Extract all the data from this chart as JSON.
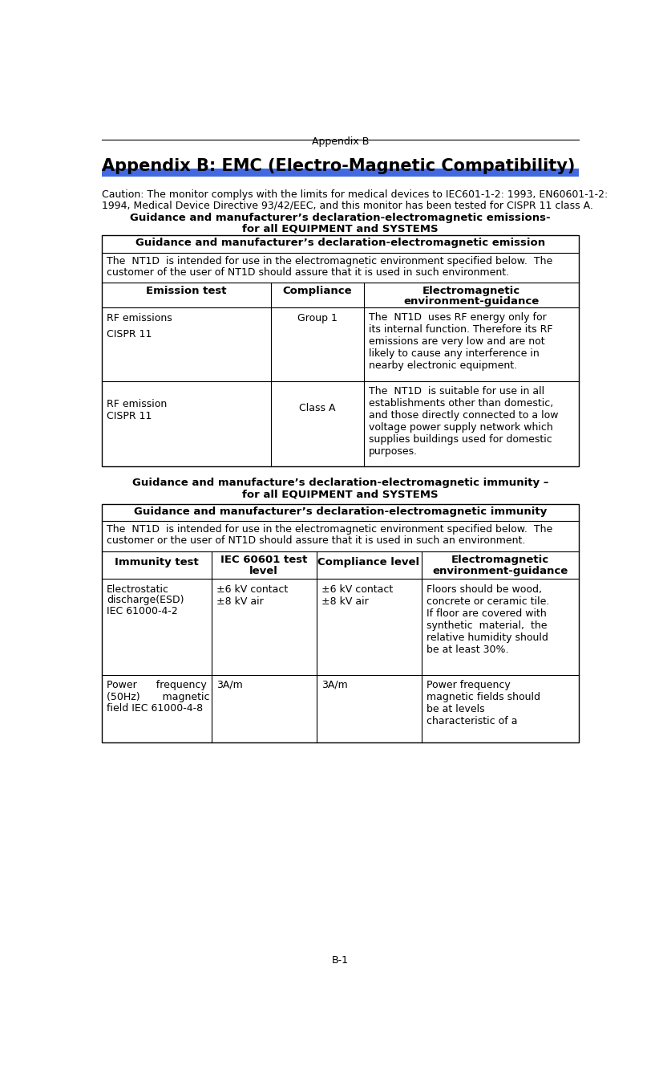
{
  "page_title": "Appendix B",
  "main_title": "Appendix B: EMC (Electro-Magnetic Compatibility)",
  "blue_bar_color": "#4169E1",
  "caution_line1": "Caution: The monitor complys with the limits for medical devices to IEC601-1-2: 1993, EN60601-1-2:",
  "caution_line2": "1994, Medical Device Directive 93/42/EEC, and this monitor has been tested for CISPR 11 class A.",
  "emissions_heading1": "Guidance and manufacturer’s declaration-electromagnetic emissions-",
  "emissions_heading2": "for all EQUIPMENT and SYSTEMS",
  "emission_table_title": "Guidance and manufacturer’s declaration-electromagnetic emission",
  "immunity_heading1": "Guidance and manufacture’s declaration-electromagnetic immunity –",
  "immunity_heading2": "for all EQUIPMENT and SYSTEMS",
  "immunity_table_title": "Guidance and manufacturer’s declaration-electromagnetic immunity",
  "footer": "B-1",
  "background_color": "#ffffff",
  "text_color": "#000000",
  "border_color": "#000000"
}
